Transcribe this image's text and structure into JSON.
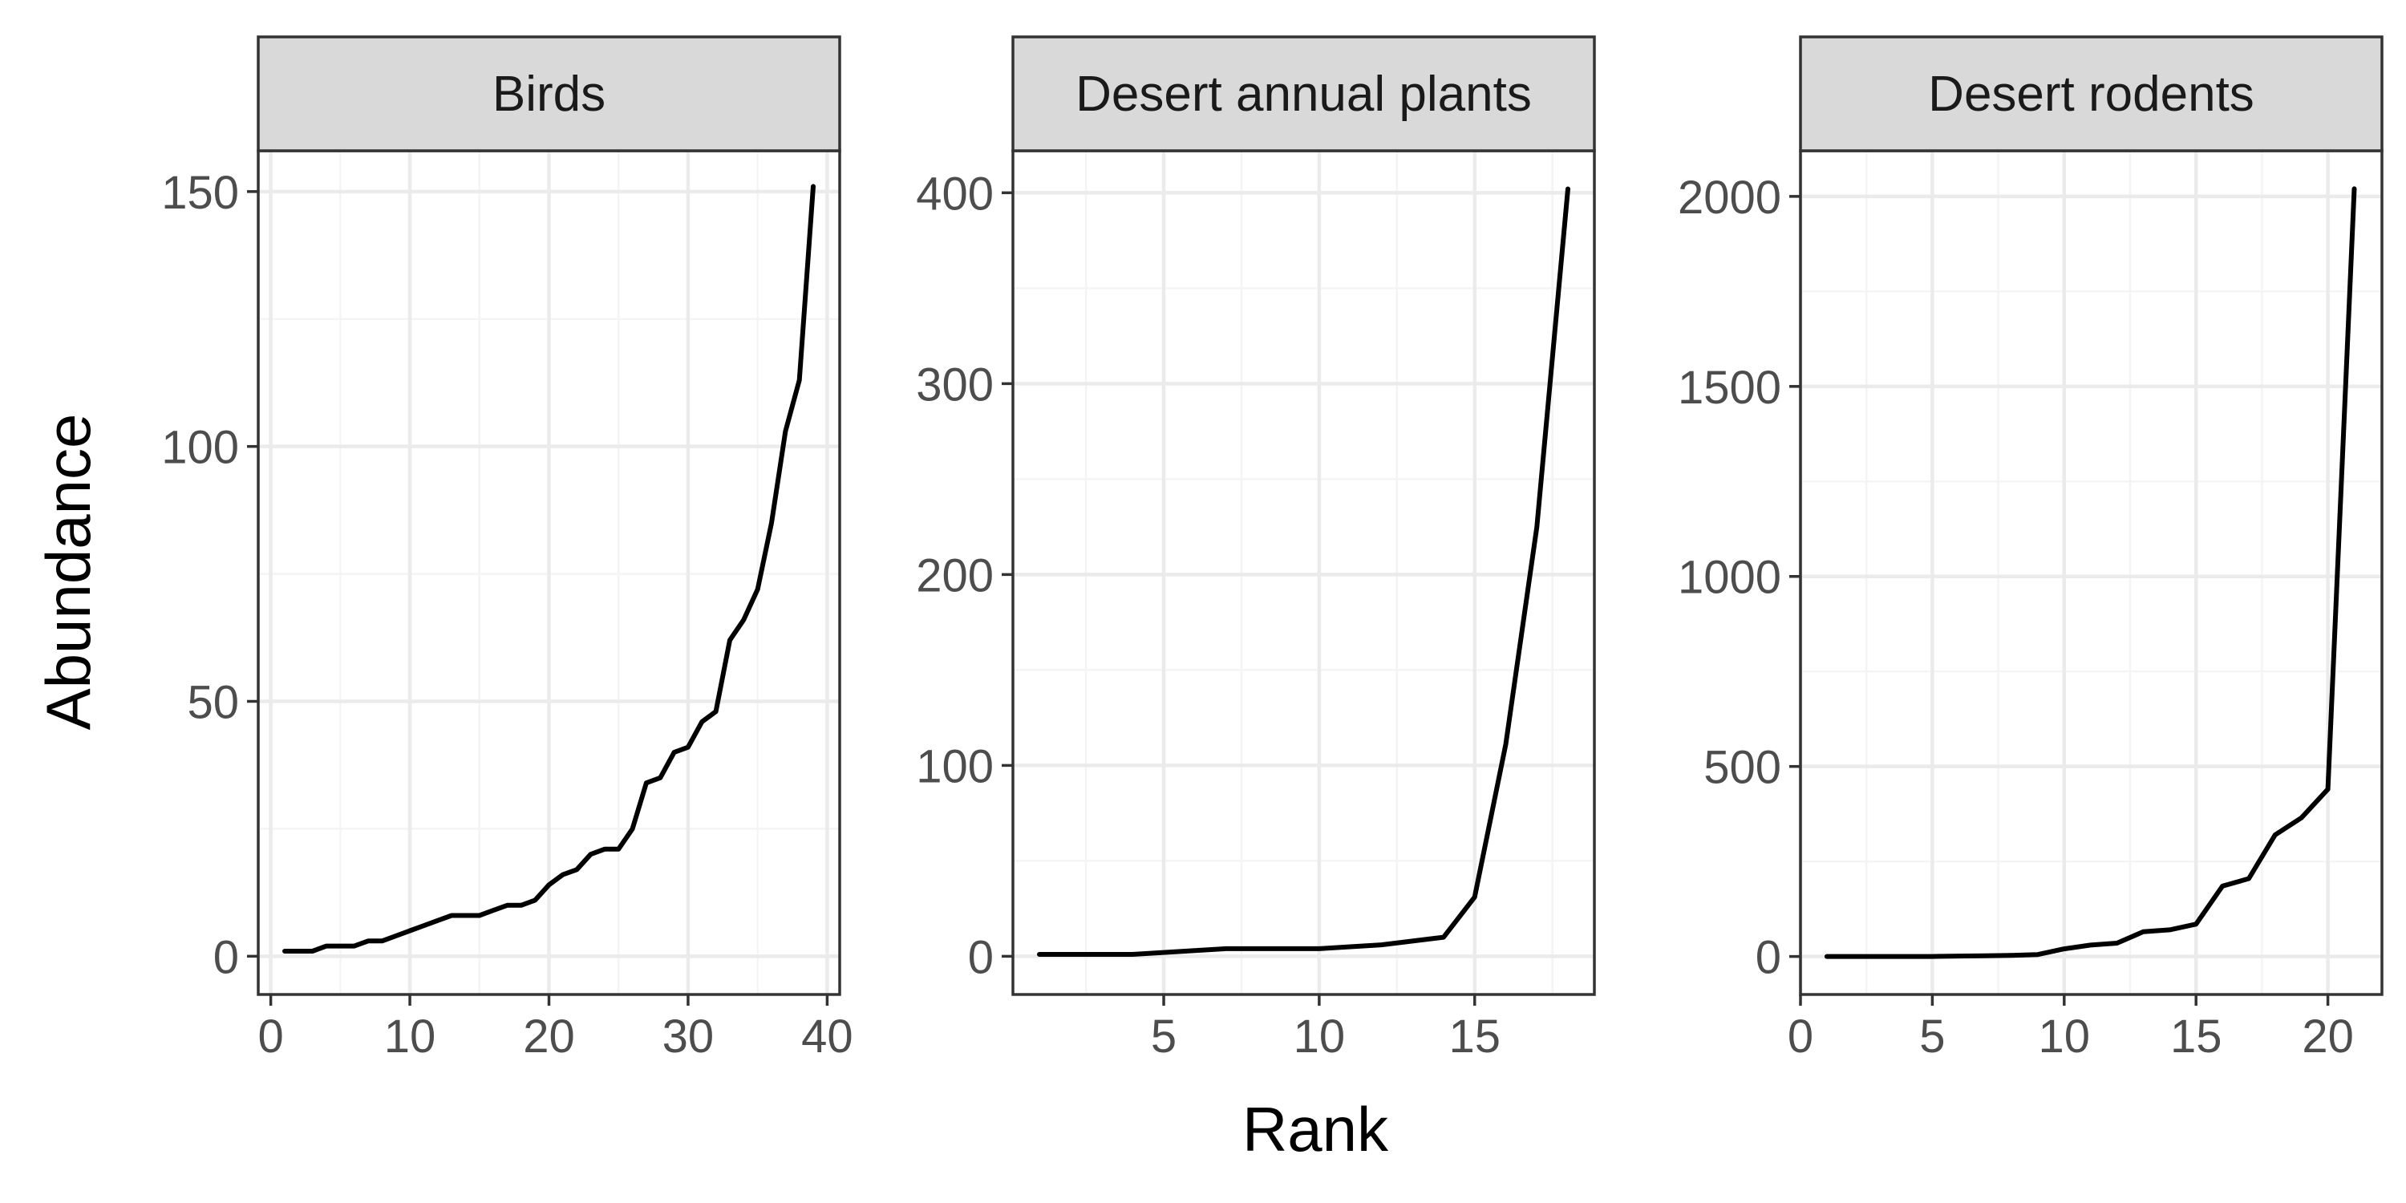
{
  "chart_data": {
    "type": "line",
    "xlabel": "Rank",
    "ylabel": "Abundance",
    "grid": true,
    "facets": [
      {
        "title": "Birds",
        "xlim": [
          -0.9,
          40.9
        ],
        "ylim": [
          -7.5,
          158
        ],
        "xticks": [
          0,
          10,
          20,
          30,
          40
        ],
        "yticks": [
          0,
          50,
          100,
          150
        ],
        "x": [
          1,
          2,
          3,
          4,
          5,
          6,
          7,
          8,
          9,
          10,
          11,
          12,
          13,
          14,
          15,
          16,
          17,
          18,
          19,
          20,
          21,
          22,
          23,
          24,
          25,
          26,
          27,
          28,
          29,
          30,
          31,
          32,
          33,
          34,
          35,
          36,
          37,
          38,
          39
        ],
        "y": [
          1,
          1,
          1,
          2,
          2,
          2,
          3,
          3,
          4,
          5,
          6,
          7,
          8,
          8,
          8,
          9,
          10,
          10,
          11,
          14,
          16,
          17,
          20,
          21,
          21,
          25,
          34,
          35,
          40,
          41,
          46,
          48,
          62,
          66,
          72,
          85,
          103,
          113,
          151
        ]
      },
      {
        "title": "Desert annual plants",
        "xlim": [
          0.15,
          18.85
        ],
        "ylim": [
          -20,
          422
        ],
        "xticks": [
          5,
          10,
          15
        ],
        "yticks": [
          0,
          100,
          200,
          300,
          400
        ],
        "x": [
          1,
          2,
          3,
          4,
          5,
          6,
          7,
          8,
          9,
          10,
          11,
          12,
          13,
          14,
          15,
          16,
          17,
          18
        ],
        "y": [
          1,
          1,
          1,
          1,
          2,
          3,
          4,
          4,
          4,
          4,
          5,
          6,
          8,
          10,
          31,
          111,
          225,
          402
        ]
      },
      {
        "title": "Desert rodents",
        "xlim": [
          0,
          22.05
        ],
        "ylim": [
          -100,
          2120
        ],
        "xticks": [
          0,
          5,
          10,
          15,
          20
        ],
        "yticks": [
          0,
          500,
          1000,
          1500,
          2000
        ],
        "x": [
          1,
          2,
          3,
          4,
          5,
          6,
          7,
          8,
          9,
          10,
          11,
          12,
          13,
          14,
          15,
          16,
          17,
          18,
          19,
          20,
          21
        ],
        "y": [
          0,
          0,
          0,
          0,
          0,
          1,
          2,
          3,
          5,
          20,
          30,
          35,
          65,
          70,
          85,
          185,
          205,
          320,
          365,
          440,
          2020
        ]
      }
    ]
  }
}
